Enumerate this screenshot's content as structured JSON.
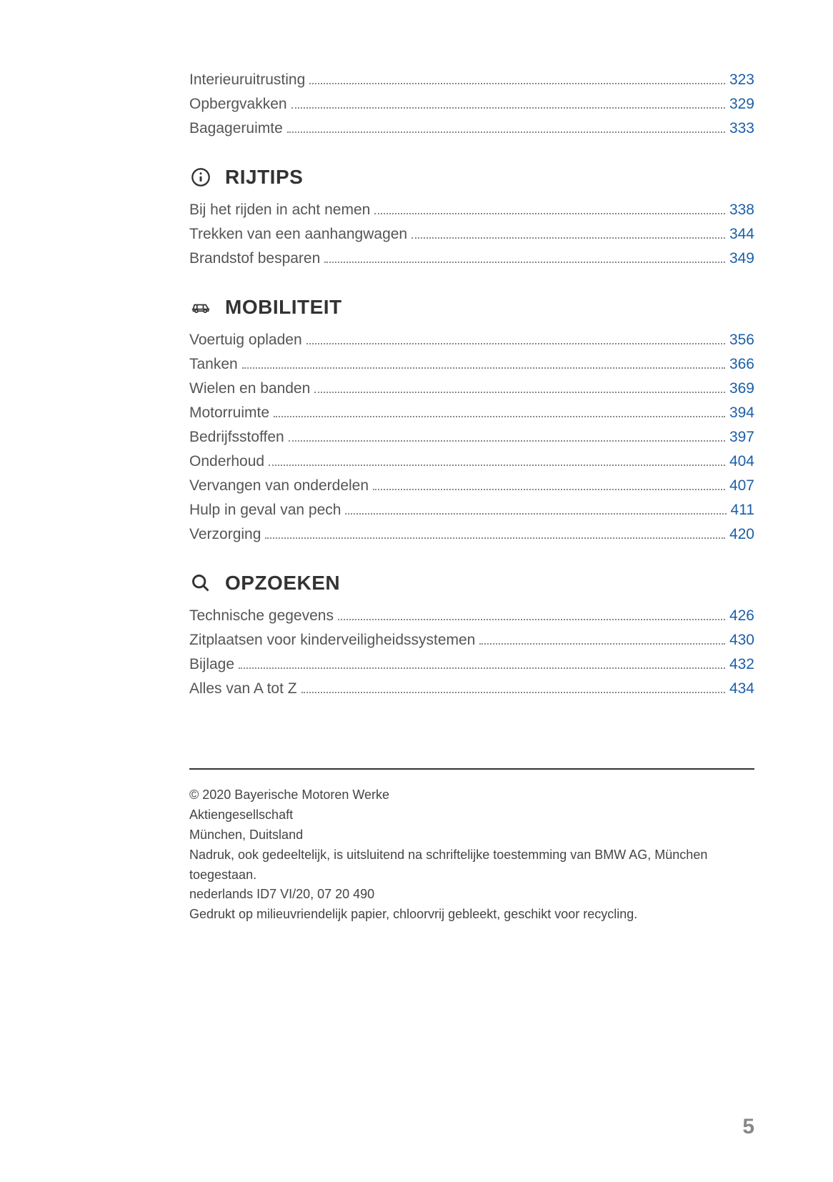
{
  "colors": {
    "background": "#ffffff",
    "text": "#555555",
    "heading": "#333333",
    "link": "#1b5fa8",
    "divider": "#333333",
    "pageNumber": "#888888"
  },
  "typography": {
    "body_fontsize": 21,
    "heading_fontsize": 28,
    "footer_fontsize": 18,
    "pageNumber_fontsize": 30
  },
  "preSection": {
    "items": [
      {
        "label": "Interieuruitrusting",
        "page": "323"
      },
      {
        "label": "Opbergvakken",
        "page": "329"
      },
      {
        "label": "Bagageruimte",
        "page": "333"
      }
    ]
  },
  "sections": [
    {
      "title": "RIJTIPS",
      "icon": "info-icon",
      "items": [
        {
          "label": "Bij het rijden in acht nemen",
          "page": "338"
        },
        {
          "label": "Trekken van een aanhangwagen",
          "page": "344"
        },
        {
          "label": "Brandstof besparen",
          "page": "349"
        }
      ]
    },
    {
      "title": "MOBILITEIT",
      "icon": "car-icon",
      "items": [
        {
          "label": "Voertuig opladen",
          "page": "356"
        },
        {
          "label": "Tanken",
          "page": "366"
        },
        {
          "label": "Wielen en banden",
          "page": "369"
        },
        {
          "label": "Motorruimte",
          "page": "394"
        },
        {
          "label": "Bedrijfsstoffen",
          "page": "397"
        },
        {
          "label": "Onderhoud",
          "page": "404"
        },
        {
          "label": "Vervangen van onderdelen",
          "page": "407"
        },
        {
          "label": "Hulp in geval van pech",
          "page": "411"
        },
        {
          "label": "Verzorging",
          "page": "420"
        }
      ]
    },
    {
      "title": "OPZOEKEN",
      "icon": "search-icon",
      "items": [
        {
          "label": "Technische gegevens",
          "page": "426"
        },
        {
          "label": "Zitplaatsen voor kinderveiligheidssystemen",
          "page": "430"
        },
        {
          "label": "Bijlage",
          "page": "432"
        },
        {
          "label": "Alles van A tot Z",
          "page": "434"
        }
      ]
    }
  ],
  "footer": {
    "lines": [
      "© 2020 Bayerische Motoren Werke",
      "Aktiengesellschaft",
      "München, Duitsland",
      "Nadruk, ook gedeeltelijk, is uitsluitend na schriftelijke toestemming van BMW AG, München toegestaan.",
      "nederlands ID7 VI/20, 07 20 490",
      "Gedrukt op milieuvriendelijk papier, chloorvrij gebleekt, geschikt voor recycling."
    ]
  },
  "pageNumber": "5"
}
